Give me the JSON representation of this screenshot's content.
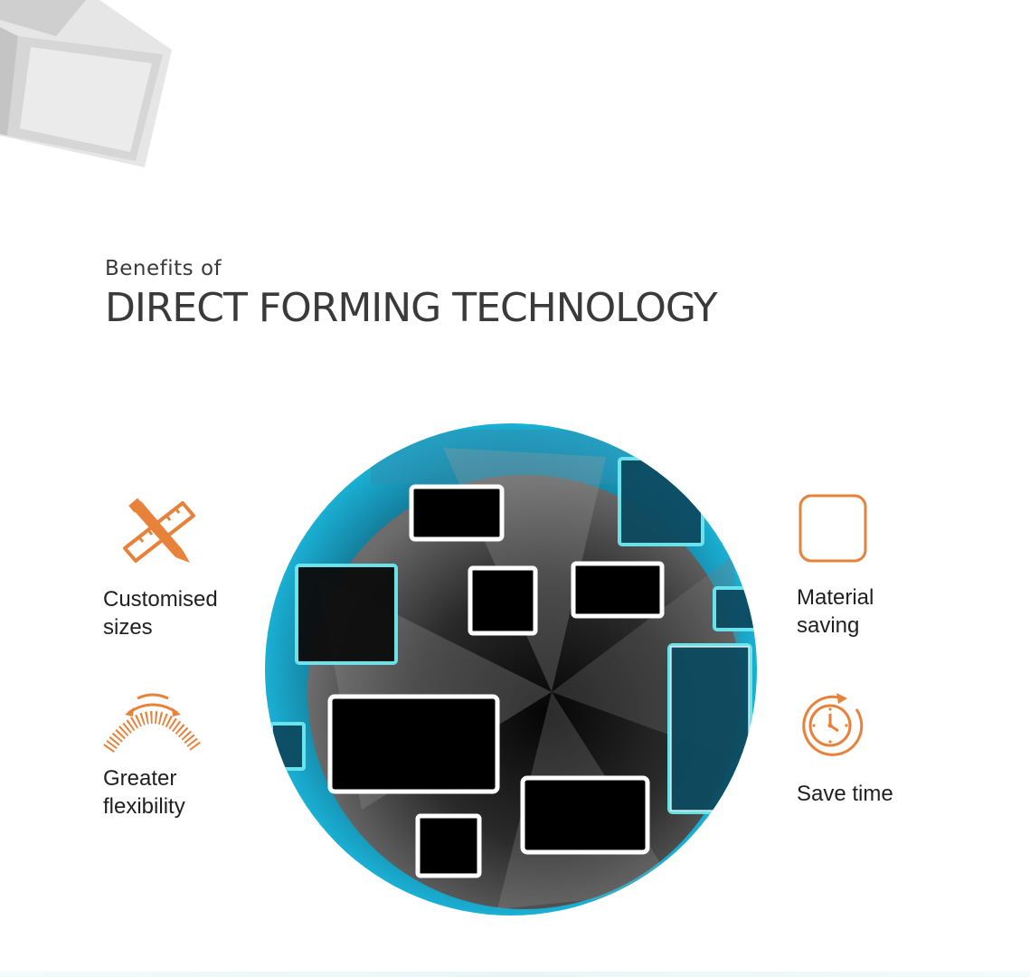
{
  "header": {
    "subtitle": "Benefits of",
    "title": "DIRECT FORMING TECHNOLOGY"
  },
  "colors": {
    "accent": "#e8813a",
    "text": "#1f1f1f",
    "heading": "#3a3a3a",
    "teal": "#18a7c9"
  },
  "features": {
    "customised": {
      "label": "Customised\nsizes",
      "icon": "ruler-pencil-icon"
    },
    "flexibility": {
      "label": "Greater\nflexibility",
      "icon": "flex-arc-icon"
    },
    "material": {
      "label": "Material\nsaving",
      "icon": "rounded-square-icon"
    },
    "time": {
      "label": "Save time",
      "icon": "stopwatch-icon"
    }
  }
}
